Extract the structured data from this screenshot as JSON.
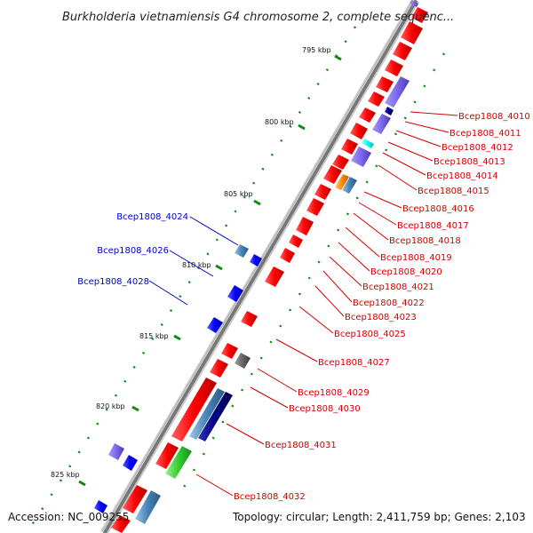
{
  "title": "Burkholderia vietnamiensis G4 chromosome 2, complete sequenc...",
  "footer": {
    "accession": "Accession: NC_009255",
    "topology": "Topology: circular; Length: 2,411,759 bp; Genes: 2,103"
  },
  "scale_labels": [
    "795 kbp",
    "800 kbp",
    "805 kbp",
    "810 kbp",
    "815 kbp",
    "820 kbp",
    "825 kbp"
  ],
  "forward_gene_labels": [
    "Bcep1808_4010",
    "Bcep1808_4011",
    "Bcep1808_4012",
    "Bcep1808_4013",
    "Bcep1808_4014",
    "Bcep1808_4015",
    "Bcep1808_4016",
    "Bcep1808_4017",
    "Bcep1808_4018",
    "Bcep1808_4019",
    "Bcep1808_4020",
    "Bcep1808_4021",
    "Bcep1808_4022",
    "Bcep1808_4023",
    "Bcep1808_4025",
    "Bcep1808_4027",
    "Bcep1808_4029",
    "Bcep1808_4030",
    "Bcep1808_4031",
    "Bcep1808_4032"
  ],
  "reverse_gene_labels": [
    "Bcep1808_4024",
    "Bcep1808_4026",
    "Bcep1808_4028"
  ],
  "colors": {
    "backbone": "#777777",
    "forward_gene": "#ff0000",
    "reverse_gene": "#0000ff",
    "label_forward": "#d40000",
    "label_reverse": "#0000cc",
    "tick": "#118811"
  }
}
